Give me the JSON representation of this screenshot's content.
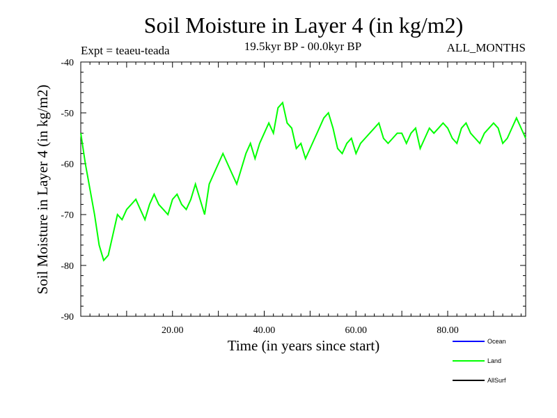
{
  "chart_data": {
    "type": "line",
    "title": "Soil Moisture in Layer 4 (in kg/m2)",
    "subtitle_left": "Expt = teaeu-teada",
    "subtitle_center": "19.5kyr BP - 00.0kyr BP",
    "subtitle_right": "ALL_MONTHS",
    "xlabel": "Time (in years since start)",
    "ylabel": "Soil Moisture in Layer 4 (in kg/m2)",
    "xlim": [
      0,
      97
    ],
    "ylim": [
      -90,
      -40
    ],
    "x_ticks": [
      20,
      40,
      60,
      80
    ],
    "x_tick_labels": [
      "20.00",
      "40.00",
      "60.00",
      "80.00"
    ],
    "y_ticks": [
      -90,
      -80,
      -70,
      -60,
      -50,
      -40
    ],
    "y_tick_labels": [
      "-90",
      "-80",
      "-70",
      "-60",
      "-50",
      "-40"
    ],
    "legend_position": "bottom-right",
    "series": [
      {
        "name": "Ocean",
        "color": "#0000ff",
        "x": [],
        "values": []
      },
      {
        "name": "Land",
        "color": "#00ff00",
        "x": [
          0,
          1,
          2,
          3,
          4,
          5,
          6,
          7,
          8,
          9,
          10,
          11,
          12,
          13,
          14,
          15,
          16,
          17,
          18,
          19,
          20,
          21,
          22,
          23,
          24,
          25,
          26,
          27,
          28,
          29,
          30,
          31,
          32,
          33,
          34,
          35,
          36,
          37,
          38,
          39,
          40,
          41,
          42,
          43,
          44,
          45,
          46,
          47,
          48,
          49,
          50,
          51,
          52,
          53,
          54,
          55,
          56,
          57,
          58,
          59,
          60,
          61,
          62,
          63,
          64,
          65,
          66,
          67,
          68,
          69,
          70,
          71,
          72,
          73,
          74,
          75,
          76,
          77,
          78,
          79,
          80,
          81,
          82,
          83,
          84,
          85,
          86,
          87,
          88,
          89,
          90,
          91,
          92,
          93,
          94,
          95,
          96,
          97
        ],
        "values": [
          -54,
          -60,
          -65,
          -70,
          -76,
          -79,
          -78,
          -74,
          -70,
          -71,
          -69,
          -68,
          -67,
          -69,
          -71,
          -68,
          -66,
          -68,
          -69,
          -70,
          -67,
          -66,
          -68,
          -69,
          -67,
          -64,
          -67,
          -70,
          -64,
          -62,
          -60,
          -58,
          -60,
          -62,
          -64,
          -61,
          -58,
          -56,
          -59,
          -56,
          -54,
          -52,
          -54,
          -49,
          -48,
          -52,
          -53,
          -57,
          -56,
          -59,
          -57,
          -55,
          -53,
          -51,
          -50,
          -53,
          -57,
          -58,
          -56,
          -55,
          -58,
          -56,
          -55,
          -54,
          -53,
          -52,
          -55,
          -56,
          -55,
          -54,
          -54,
          -56,
          -54,
          -53,
          -57,
          -55,
          -53,
          -54,
          -53,
          -52,
          -53,
          -55,
          -56,
          -53,
          -52,
          -54,
          -55,
          -56,
          -54,
          -53,
          -52,
          -53,
          -56,
          -55,
          -53,
          -51,
          -53,
          -55
        ]
      },
      {
        "name": "AllSurf",
        "color": "#000000",
        "x": [],
        "values": []
      }
    ]
  }
}
